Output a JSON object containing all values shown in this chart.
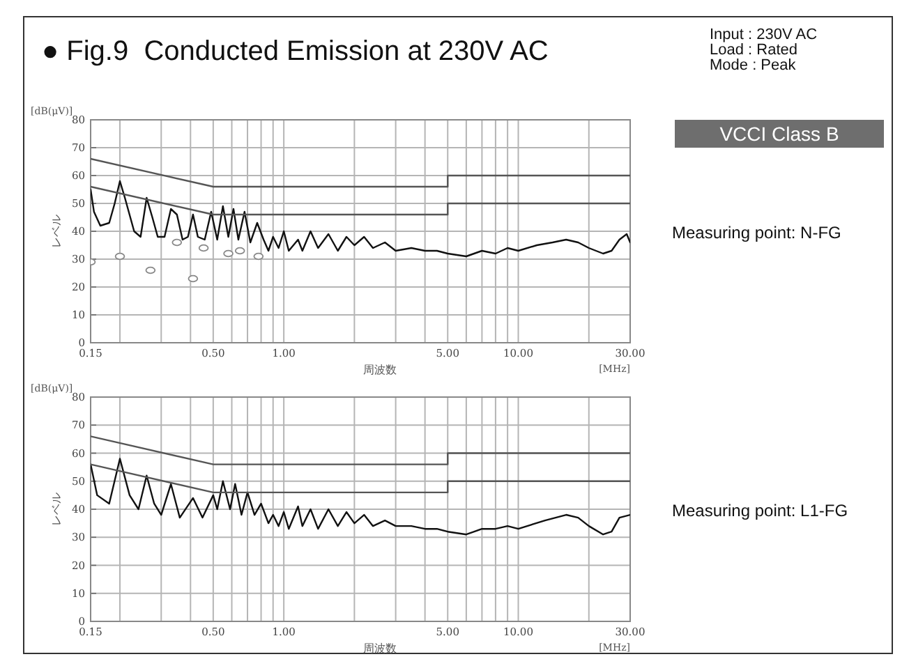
{
  "chart_data": [
    {
      "type": "line",
      "title": "● Fig.9  Conducted Emission at 230V AC",
      "xlabel": "周波数",
      "ylabel": "レベル",
      "annotations": [
        "[dB(μV)]",
        "[MHz]",
        "Measuring point: N-FG",
        "Input : 230V AC",
        "Load : Rated",
        "Mode : Peak",
        "VCCI Class B"
      ],
      "log": "x",
      "grid": true,
      "xlim": [
        0.15,
        30
      ],
      "ylim": [
        0,
        80
      ],
      "xticks": [
        {
          "value": 0.15,
          "label": "0.15"
        },
        {
          "value": 0.2,
          "label": null
        },
        {
          "value": 0.3,
          "label": null
        },
        {
          "value": 0.4,
          "label": null
        },
        {
          "value": 0.5,
          "label": "0.50"
        },
        {
          "value": 0.6,
          "label": null
        },
        {
          "value": 0.7,
          "label": null
        },
        {
          "value": 0.8,
          "label": null
        },
        {
          "value": 0.9,
          "label": null
        },
        {
          "value": 1,
          "label": "1.00"
        },
        {
          "value": 2,
          "label": null
        },
        {
          "value": 3,
          "label": null
        },
        {
          "value": 4,
          "label": null
        },
        {
          "value": 5,
          "label": "5.00"
        },
        {
          "value": 6,
          "label": null
        },
        {
          "value": 7,
          "label": null
        },
        {
          "value": 8,
          "label": null
        },
        {
          "value": 9,
          "label": null
        },
        {
          "value": 10,
          "label": "10.00"
        },
        {
          "value": 20,
          "label": null
        },
        {
          "value": 30,
          "label": "30.00"
        }
      ],
      "yticks": [
        0,
        10,
        20,
        30,
        40,
        50,
        60,
        70,
        80
      ],
      "series": [
        {
          "type": "line",
          "color": "#111111",
          "x": [
            0.15,
            0.155,
            0.165,
            0.18,
            0.19,
            0.2,
            0.21,
            0.23,
            0.245,
            0.26,
            0.275,
            0.29,
            0.31,
            0.33,
            0.35,
            0.37,
            0.39,
            0.41,
            0.43,
            0.46,
            0.49,
            0.52,
            0.55,
            0.58,
            0.61,
            0.64,
            0.68,
            0.72,
            0.77,
            0.82,
            0.86,
            0.9,
            0.95,
            1.0,
            1.05,
            1.15,
            1.2,
            1.3,
            1.4,
            1.55,
            1.7,
            1.85,
            2.0,
            2.2,
            2.4,
            2.7,
            3.0,
            3.5,
            4,
            4.5,
            5,
            6,
            7,
            8,
            9,
            10,
            12,
            14,
            16,
            18,
            20,
            23,
            25,
            27,
            29,
            30
          ],
          "values": [
            55,
            47,
            42,
            43,
            50,
            58,
            52,
            40,
            38,
            52,
            45,
            38,
            38,
            48,
            46,
            37,
            38,
            46,
            38,
            37,
            47,
            37,
            49,
            38,
            48,
            37,
            47,
            36,
            43,
            37,
            33,
            38,
            34,
            40,
            33,
            37,
            33,
            40,
            34,
            39,
            33,
            38,
            35,
            38,
            34,
            36,
            33,
            34,
            33,
            33,
            32,
            31,
            33,
            32,
            34,
            33,
            35,
            36,
            37,
            36,
            34,
            32,
            33,
            37,
            39,
            36
          ]
        },
        {
          "type": "line",
          "color": "#555555",
          "x": [
            0.15,
            0.5,
            5,
            5,
            30
          ],
          "values": [
            66,
            56,
            56,
            60,
            60
          ]
        },
        {
          "type": "line",
          "color": "#555555",
          "x": [
            0.15,
            0.5,
            5,
            5,
            30
          ],
          "values": [
            56,
            46,
            46,
            50,
            50
          ]
        },
        {
          "type": "scatter",
          "marker": "circle",
          "color": "#888888",
          "x": [
            0.15,
            0.2,
            0.27,
            0.35,
            0.41,
            0.455,
            0.58,
            0.65,
            0.78
          ],
          "values": [
            29,
            31,
            26,
            36,
            23,
            34,
            32,
            33,
            31
          ]
        }
      ]
    },
    {
      "type": "line",
      "xlabel": "周波数",
      "ylabel": "レベル",
      "annotations": [
        "[dB(μV)]",
        "[MHz]",
        "Measuring point: L1-FG"
      ],
      "log": "x",
      "grid": true,
      "xlim": [
        0.15,
        30
      ],
      "ylim": [
        0,
        80
      ],
      "xticks": [
        {
          "value": 0.15,
          "label": "0.15"
        },
        {
          "value": 0.2,
          "label": null
        },
        {
          "value": 0.3,
          "label": null
        },
        {
          "value": 0.4,
          "label": null
        },
        {
          "value": 0.5,
          "label": "0.50"
        },
        {
          "value": 0.6,
          "label": null
        },
        {
          "value": 0.7,
          "label": null
        },
        {
          "value": 0.8,
          "label": null
        },
        {
          "value": 0.9,
          "label": null
        },
        {
          "value": 1,
          "label": "1.00"
        },
        {
          "value": 2,
          "label": null
        },
        {
          "value": 3,
          "label": null
        },
        {
          "value": 4,
          "label": null
        },
        {
          "value": 5,
          "label": "5.00"
        },
        {
          "value": 6,
          "label": null
        },
        {
          "value": 7,
          "label": null
        },
        {
          "value": 8,
          "label": null
        },
        {
          "value": 9,
          "label": null
        },
        {
          "value": 10,
          "label": "10.00"
        },
        {
          "value": 20,
          "label": null
        },
        {
          "value": 30,
          "label": "30.00"
        }
      ],
      "yticks": [
        0,
        10,
        20,
        30,
        40,
        50,
        60,
        70,
        80
      ],
      "series": [
        {
          "type": "line",
          "color": "#111111",
          "x": [
            0.15,
            0.16,
            0.18,
            0.2,
            0.22,
            0.24,
            0.26,
            0.28,
            0.3,
            0.33,
            0.36,
            0.41,
            0.45,
            0.5,
            0.52,
            0.55,
            0.59,
            0.62,
            0.66,
            0.7,
            0.75,
            0.8,
            0.86,
            0.9,
            0.95,
            1.0,
            1.05,
            1.15,
            1.2,
            1.3,
            1.4,
            1.55,
            1.7,
            1.85,
            2.0,
            2.2,
            2.4,
            2.7,
            3.0,
            3.5,
            4,
            4.5,
            5,
            6,
            7,
            8,
            9,
            10,
            13,
            16,
            18,
            20,
            23,
            25,
            27,
            30
          ],
          "values": [
            56,
            45,
            42,
            58,
            45,
            40,
            52,
            42,
            38,
            49,
            37,
            44,
            37,
            45,
            40,
            50,
            40,
            49,
            38,
            46,
            38,
            42,
            35,
            38,
            34,
            39,
            33,
            41,
            34,
            40,
            33,
            40,
            34,
            39,
            35,
            38,
            34,
            36,
            34,
            34,
            33,
            33,
            32,
            31,
            33,
            33,
            34,
            33,
            36,
            38,
            37,
            34,
            31,
            32,
            37,
            38
          ]
        },
        {
          "type": "line",
          "color": "#555555",
          "x": [
            0.15,
            0.5,
            5,
            5,
            30
          ],
          "values": [
            66,
            56,
            56,
            60,
            60
          ]
        },
        {
          "type": "line",
          "color": "#555555",
          "x": [
            0.15,
            0.5,
            5,
            5,
            30
          ],
          "values": [
            56,
            46,
            46,
            50,
            50
          ]
        }
      ]
    }
  ]
}
